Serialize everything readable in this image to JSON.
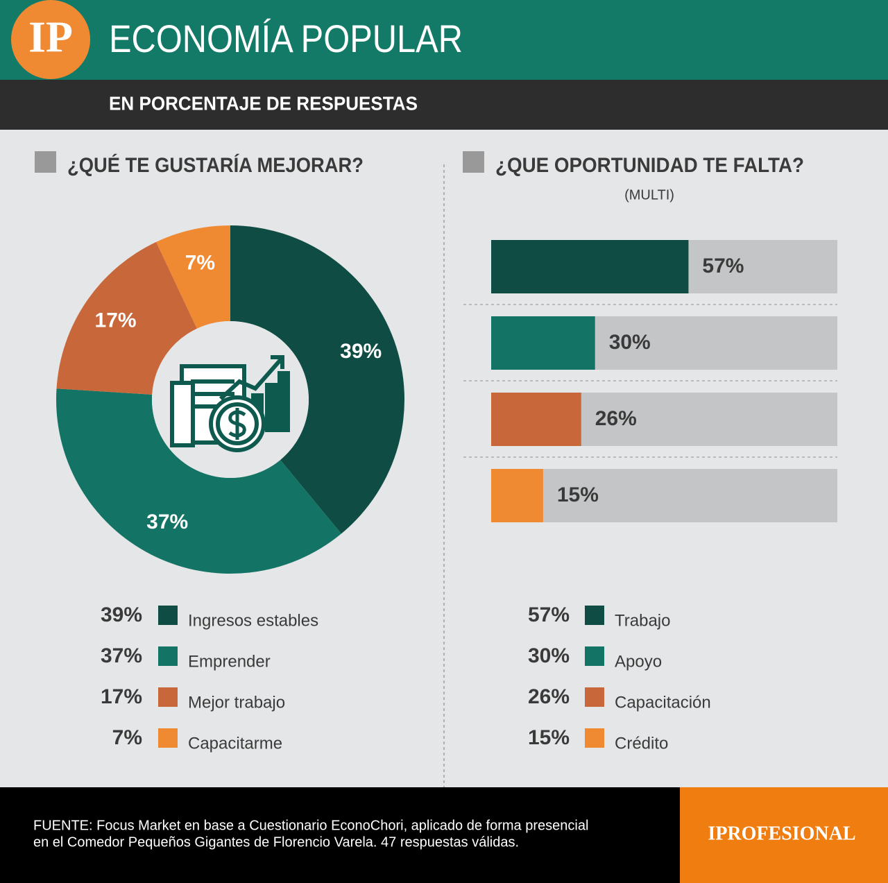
{
  "header": {
    "logo": "IP",
    "title": "ECONOMÍA POPULAR",
    "subtitle": "EN PORCENTAJE DE RESPUESTAS"
  },
  "chart_data": [
    {
      "type": "pie",
      "title": "¿QUÉ TE GUSTARÍA MEJORAR?",
      "categories": [
        "Ingresos estables",
        "Emprender",
        "Mejor trabajo",
        "Capacitarme"
      ],
      "values": [
        39,
        37,
        17,
        7
      ],
      "value_labels": [
        "39%",
        "37%",
        "17%",
        "7%"
      ],
      "colors": [
        "#0f4d44",
        "#137465",
        "#c8673a",
        "#f08a32"
      ]
    },
    {
      "type": "bar",
      "title": "¿QUE OPORTUNIDAD TE FALTA?",
      "subtitle": "(MULTI)",
      "categories": [
        "Trabajo",
        "Apoyo",
        "Capacitación",
        "Crédito"
      ],
      "values": [
        57,
        30,
        26,
        15
      ],
      "value_labels": [
        "57%",
        "30%",
        "26%",
        "15%"
      ],
      "colors": [
        "#0f4d44",
        "#137465",
        "#c8673a",
        "#f08a32"
      ],
      "xlim": [
        0,
        100
      ]
    }
  ],
  "footer": {
    "source": [
      "FUENTE: Focus Market en base a Cuestionario EconoChori, aplicado de forma presencial",
      "en el Comedor Pequeños Gigantes de Florencio Varela. 47 respuestas válidas."
    ],
    "brand": "IPROFESIONAL"
  }
}
